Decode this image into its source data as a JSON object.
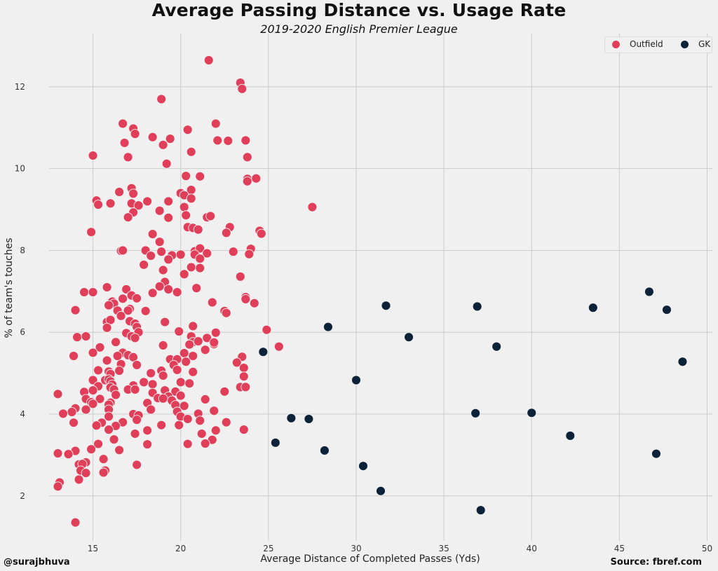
{
  "chart_data": {
    "type": "scatter",
    "title": "Average Passing Distance vs. Usage Rate",
    "subtitle": "2019-2020 English Premier League",
    "xlabel": "Average Distance of Completed Passes (Yds)",
    "ylabel": "% of team's touches",
    "xlim": [
      12.5,
      50.3
    ],
    "ylim": [
      0.9,
      13.3
    ],
    "xticks": [
      15,
      20,
      25,
      30,
      35,
      40,
      45,
      50
    ],
    "yticks": [
      2,
      4,
      6,
      8,
      10,
      12
    ],
    "grid": true,
    "legend": "top-right",
    "series": [
      {
        "name": "Outfield",
        "color": "#e03e59",
        "points": [
          [
            21.6,
            12.65
          ],
          [
            23.4,
            12.1
          ],
          [
            23.5,
            11.95
          ],
          [
            18.9,
            11.7
          ],
          [
            16.7,
            11.1
          ],
          [
            22.0,
            11.1
          ],
          [
            17.3,
            10.98
          ],
          [
            17.4,
            10.85
          ],
          [
            20.4,
            10.95
          ],
          [
            16.8,
            10.63
          ],
          [
            18.4,
            10.77
          ],
          [
            19.4,
            10.73
          ],
          [
            22.1,
            10.69
          ],
          [
            22.7,
            10.68
          ],
          [
            23.7,
            10.69
          ],
          [
            19.0,
            10.58
          ],
          [
            20.6,
            10.41
          ],
          [
            15.0,
            10.32
          ],
          [
            17.0,
            10.28
          ],
          [
            23.8,
            10.28
          ],
          [
            19.2,
            10.12
          ],
          [
            20.3,
            9.82
          ],
          [
            21.1,
            9.81
          ],
          [
            23.8,
            9.75
          ],
          [
            24.3,
            9.76
          ],
          [
            23.8,
            9.69
          ],
          [
            16.5,
            9.43
          ],
          [
            17.2,
            9.52
          ],
          [
            17.3,
            9.39
          ],
          [
            20.0,
            9.4
          ],
          [
            20.6,
            9.48
          ],
          [
            20.2,
            9.35
          ],
          [
            20.6,
            9.27
          ],
          [
            15.2,
            9.22
          ],
          [
            15.3,
            9.12
          ],
          [
            16.0,
            9.15
          ],
          [
            17.2,
            9.15
          ],
          [
            17.6,
            9.1
          ],
          [
            18.1,
            9.2
          ],
          [
            19.3,
            9.2
          ],
          [
            20.2,
            9.06
          ],
          [
            27.5,
            9.06
          ],
          [
            17.3,
            8.93
          ],
          [
            18.8,
            8.97
          ],
          [
            17.0,
            8.81
          ],
          [
            19.3,
            8.8
          ],
          [
            20.3,
            8.86
          ],
          [
            21.5,
            8.81
          ],
          [
            21.7,
            8.84
          ],
          [
            22.8,
            8.57
          ],
          [
            20.4,
            8.57
          ],
          [
            20.7,
            8.55
          ],
          [
            21.0,
            8.51
          ],
          [
            14.9,
            8.45
          ],
          [
            22.6,
            8.43
          ],
          [
            24.5,
            8.48
          ],
          [
            24.6,
            8.41
          ],
          [
            18.4,
            8.4
          ],
          [
            18.8,
            8.21
          ],
          [
            24.0,
            8.04
          ],
          [
            16.6,
            7.99
          ],
          [
            16.7,
            8.0
          ],
          [
            18.0,
            8.0
          ],
          [
            18.9,
            7.97
          ],
          [
            20.0,
            7.9
          ],
          [
            20.8,
            7.98
          ],
          [
            21.1,
            8.05
          ],
          [
            21.5,
            7.93
          ],
          [
            23.0,
            7.97
          ],
          [
            23.9,
            7.91
          ],
          [
            18.3,
            7.87
          ],
          [
            19.5,
            7.88
          ],
          [
            20.8,
            7.9
          ],
          [
            21.1,
            7.8
          ],
          [
            19.3,
            7.78
          ],
          [
            17.9,
            7.65
          ],
          [
            20.6,
            7.59
          ],
          [
            21.1,
            7.57
          ],
          [
            19.0,
            7.52
          ],
          [
            20.2,
            7.42
          ],
          [
            23.4,
            7.36
          ],
          [
            19.1,
            7.23
          ],
          [
            18.8,
            7.12
          ],
          [
            15.8,
            7.1
          ],
          [
            16.9,
            7.05
          ],
          [
            19.3,
            7.05
          ],
          [
            20.9,
            7.08
          ],
          [
            14.5,
            6.98
          ],
          [
            15.0,
            6.98
          ],
          [
            18.4,
            6.96
          ],
          [
            19.8,
            6.98
          ],
          [
            17.2,
            6.9
          ],
          [
            17.5,
            6.83
          ],
          [
            16.7,
            6.82
          ],
          [
            23.7,
            6.86
          ],
          [
            23.7,
            6.81
          ],
          [
            16.1,
            6.75
          ],
          [
            21.8,
            6.73
          ],
          [
            24.2,
            6.71
          ],
          [
            16.2,
            6.7
          ],
          [
            15.9,
            6.66
          ],
          [
            14.0,
            6.54
          ],
          [
            16.4,
            6.53
          ],
          [
            17.1,
            6.57
          ],
          [
            17.0,
            6.53
          ],
          [
            18.0,
            6.52
          ],
          [
            22.5,
            6.52
          ],
          [
            22.6,
            6.47
          ],
          [
            16.6,
            6.4
          ],
          [
            19.1,
            6.25
          ],
          [
            15.8,
            6.25
          ],
          [
            16.0,
            6.3
          ],
          [
            17.1,
            6.27
          ],
          [
            17.4,
            6.21
          ],
          [
            17.5,
            6.13
          ],
          [
            15.8,
            6.11
          ],
          [
            20.7,
            6.15
          ],
          [
            24.9,
            6.06
          ],
          [
            17.6,
            6.0
          ],
          [
            16.9,
            5.98
          ],
          [
            19.9,
            6.02
          ],
          [
            22.0,
            5.99
          ],
          [
            14.1,
            5.88
          ],
          [
            14.6,
            5.9
          ],
          [
            17.2,
            5.9
          ],
          [
            17.4,
            5.86
          ],
          [
            20.6,
            5.9
          ],
          [
            21.5,
            5.86
          ],
          [
            20.7,
            5.76
          ],
          [
            21.0,
            5.78
          ],
          [
            16.3,
            5.76
          ],
          [
            19.0,
            5.68
          ],
          [
            20.5,
            5.7
          ],
          [
            21.9,
            5.71
          ],
          [
            21.9,
            5.75
          ],
          [
            25.6,
            5.65
          ],
          [
            15.4,
            5.63
          ],
          [
            16.7,
            5.5
          ],
          [
            20.2,
            5.49
          ],
          [
            21.4,
            5.57
          ],
          [
            15.0,
            5.5
          ],
          [
            13.9,
            5.42
          ],
          [
            16.4,
            5.42
          ],
          [
            17.0,
            5.44
          ],
          [
            17.3,
            5.39
          ],
          [
            20.7,
            5.42
          ],
          [
            23.5,
            5.4
          ],
          [
            19.4,
            5.34
          ],
          [
            15.8,
            5.31
          ],
          [
            19.8,
            5.34
          ],
          [
            20.3,
            5.28
          ],
          [
            23.2,
            5.26
          ],
          [
            16.6,
            5.22
          ],
          [
            17.5,
            5.2
          ],
          [
            19.6,
            5.2
          ],
          [
            23.6,
            5.13
          ],
          [
            15.3,
            5.07
          ],
          [
            16.5,
            5.06
          ],
          [
            18.9,
            5.06
          ],
          [
            19.8,
            5.08
          ],
          [
            20.7,
            5.03
          ],
          [
            15.9,
            5.04
          ],
          [
            16.0,
            4.98
          ],
          [
            18.3,
            5.0
          ],
          [
            19.0,
            4.94
          ],
          [
            23.6,
            4.92
          ],
          [
            15.0,
            4.83
          ],
          [
            15.7,
            4.83
          ],
          [
            15.9,
            4.85
          ],
          [
            16.0,
            4.8
          ],
          [
            17.9,
            4.78
          ],
          [
            20.0,
            4.78
          ],
          [
            16.1,
            4.72
          ],
          [
            17.3,
            4.7
          ],
          [
            18.4,
            4.73
          ],
          [
            20.5,
            4.75
          ],
          [
            15.3,
            4.68
          ],
          [
            23.4,
            4.66
          ],
          [
            23.7,
            4.66
          ],
          [
            16.0,
            4.65
          ],
          [
            16.2,
            4.6
          ],
          [
            17.0,
            4.6
          ],
          [
            17.4,
            4.6
          ],
          [
            19.1,
            4.58
          ],
          [
            19.7,
            4.55
          ],
          [
            14.5,
            4.54
          ],
          [
            15.0,
            4.58
          ],
          [
            18.4,
            4.52
          ],
          [
            22.5,
            4.55
          ],
          [
            13.0,
            4.49
          ],
          [
            16.3,
            4.47
          ],
          [
            19.3,
            4.43
          ],
          [
            20.0,
            4.45
          ],
          [
            14.6,
            4.37
          ],
          [
            15.4,
            4.37
          ],
          [
            18.7,
            4.39
          ],
          [
            19.0,
            4.38
          ],
          [
            21.4,
            4.36
          ],
          [
            19.5,
            4.33
          ],
          [
            14.9,
            4.29
          ],
          [
            16.0,
            4.28
          ],
          [
            18.1,
            4.27
          ],
          [
            15.0,
            4.25
          ],
          [
            15.9,
            4.23
          ],
          [
            19.7,
            4.22
          ],
          [
            20.2,
            4.2
          ],
          [
            14.0,
            4.14
          ],
          [
            14.6,
            4.11
          ],
          [
            15.9,
            4.11
          ],
          [
            18.3,
            4.11
          ],
          [
            21.9,
            4.08
          ],
          [
            19.8,
            4.06
          ],
          [
            20.0,
            3.94
          ],
          [
            13.8,
            4.05
          ],
          [
            13.3,
            4.01
          ],
          [
            17.3,
            4.0
          ],
          [
            17.6,
            3.97
          ],
          [
            21.0,
            4.01
          ],
          [
            15.9,
            3.94
          ],
          [
            17.5,
            3.86
          ],
          [
            20.4,
            3.88
          ],
          [
            13.9,
            3.79
          ],
          [
            15.5,
            3.79
          ],
          [
            16.7,
            3.8
          ],
          [
            21.1,
            3.84
          ],
          [
            22.6,
            3.8
          ],
          [
            18.9,
            3.73
          ],
          [
            19.9,
            3.73
          ],
          [
            15.2,
            3.72
          ],
          [
            16.3,
            3.71
          ],
          [
            15.9,
            3.62
          ],
          [
            18.1,
            3.6
          ],
          [
            22.0,
            3.6
          ],
          [
            23.6,
            3.62
          ],
          [
            17.4,
            3.52
          ],
          [
            21.2,
            3.52
          ],
          [
            16.2,
            3.38
          ],
          [
            21.8,
            3.37
          ],
          [
            15.3,
            3.27
          ],
          [
            18.1,
            3.26
          ],
          [
            20.4,
            3.27
          ],
          [
            21.4,
            3.28
          ],
          [
            14.9,
            3.14
          ],
          [
            16.5,
            3.12
          ],
          [
            14.0,
            3.1
          ],
          [
            13.0,
            3.04
          ],
          [
            13.6,
            3.02
          ],
          [
            15.6,
            2.9
          ],
          [
            14.6,
            2.82
          ],
          [
            14.2,
            2.77
          ],
          [
            14.4,
            2.78
          ],
          [
            17.5,
            2.76
          ],
          [
            14.3,
            2.62
          ],
          [
            15.7,
            2.62
          ],
          [
            14.6,
            2.56
          ],
          [
            15.6,
            2.57
          ],
          [
            14.2,
            2.4
          ],
          [
            13.1,
            2.33
          ],
          [
            13.0,
            2.23
          ],
          [
            14.0,
            1.35
          ]
        ]
      },
      {
        "name": "GK",
        "color": "#0b2239",
        "points": [
          [
            46.7,
            6.99
          ],
          [
            47.7,
            6.55
          ],
          [
            43.5,
            6.6
          ],
          [
            31.7,
            6.65
          ],
          [
            36.9,
            6.63
          ],
          [
            28.4,
            6.13
          ],
          [
            33.0,
            5.88
          ],
          [
            38.0,
            5.65
          ],
          [
            24.7,
            5.52
          ],
          [
            48.6,
            5.28
          ],
          [
            30.0,
            4.83
          ],
          [
            36.8,
            4.02
          ],
          [
            40.0,
            4.03
          ],
          [
            26.3,
            3.9
          ],
          [
            27.3,
            3.88
          ],
          [
            42.2,
            3.47
          ],
          [
            25.4,
            3.3
          ],
          [
            28.2,
            3.11
          ],
          [
            47.1,
            3.03
          ],
          [
            30.4,
            2.73
          ],
          [
            31.4,
            2.12
          ],
          [
            37.1,
            1.65
          ]
        ]
      }
    ]
  },
  "footer": {
    "credit": "@surajbhuva",
    "source": "Source: fbref.com"
  }
}
